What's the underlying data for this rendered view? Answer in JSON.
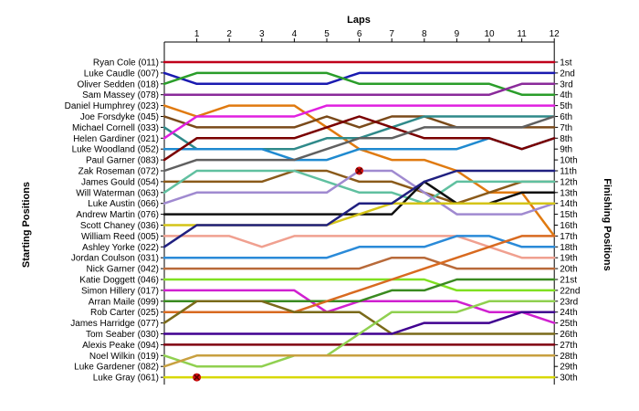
{
  "chart_data": {
    "type": "line",
    "title": "",
    "x_axis_title": "Laps",
    "left_axis_title": "Starting Positions",
    "right_axis_title": "Finishing Positions",
    "laps": [
      1,
      2,
      3,
      4,
      5,
      6,
      7,
      8,
      9,
      10,
      11,
      12
    ],
    "y_inverted": true,
    "grid": false,
    "starting_labels": [
      "Ryan Cole (011)",
      "Luke Caudle (007)",
      "Oliver Sedden (018)",
      "Sam Massey (078)",
      "Daniel Humphrey (023)",
      "Joe Forsdyke (045)",
      "Michael Cornell (033)",
      "Helen Gardiner (021)",
      "Luke Woodland (052)",
      "Paul Garner (083)",
      "Zak Roseman (072)",
      "James Gould (054)",
      "Will Waterman (063)",
      "Luke Austin (066)",
      "Andrew Martin (076)",
      "Scott Chaney (036)",
      "William Reed (005)",
      "Ashley Yorke (022)",
      "Jordan Coulson (031)",
      "Nick Garner (042)",
      "Katie Doggett (046)",
      "Simon Hillery (017)",
      "Arran Maile (099)",
      "Rob Carter (025)",
      "James Harridge (077)",
      "Tom Seaber (030)",
      "Alexis Peake (094)",
      "Noel Wilkin (019)",
      "Luke Gardener (082)",
      "Luke Gray (061)"
    ],
    "finishing_labels": [
      "1st",
      "2nd",
      "3rd",
      "4th",
      "5th",
      "6th",
      "7th",
      "8th",
      "9th",
      "10th",
      "11th",
      "12th",
      "13th",
      "14th",
      "15th",
      "16th",
      "17th",
      "18th",
      "19th",
      "20th",
      "21st",
      "22nd",
      "23rd",
      "24th",
      "25th",
      "26th",
      "27th",
      "28th",
      "29th",
      "30th"
    ],
    "series": [
      {
        "color": "#c0001a",
        "positions": [
          1,
          1,
          1,
          1,
          1,
          1,
          1,
          1,
          1,
          1,
          1,
          1,
          1
        ]
      },
      {
        "color": "#1a1ab0",
        "positions": [
          2,
          3,
          3,
          3,
          3,
          3,
          2,
          2,
          2,
          2,
          2,
          2,
          2
        ]
      },
      {
        "color": "#2a9d2a",
        "positions": [
          3,
          2,
          2,
          2,
          2,
          2,
          3,
          3,
          3,
          3,
          3,
          4,
          4
        ]
      },
      {
        "color": "#8a2a9a",
        "positions": [
          4,
          4,
          4,
          4,
          4,
          4,
          4,
          4,
          4,
          4,
          4,
          3,
          3
        ]
      },
      {
        "color": "#e07a10",
        "positions": [
          5,
          6,
          5,
          5,
          5,
          7,
          9,
          10,
          10,
          11,
          13,
          13,
          17
        ]
      },
      {
        "color": "#7a4a1a",
        "positions": [
          6,
          7,
          7,
          7,
          7,
          6,
          7,
          6,
          6,
          7,
          7,
          7,
          7
        ]
      },
      {
        "color": "#2f8a8a",
        "positions": [
          7,
          9,
          9,
          9,
          9,
          8,
          8,
          7,
          6,
          6,
          6,
          6,
          6
        ]
      },
      {
        "color": "#e020e0",
        "positions": [
          8,
          6,
          6,
          6,
          6,
          5,
          5,
          5,
          5,
          5,
          5,
          5,
          5
        ]
      },
      {
        "color": "#1f8ad0",
        "positions": [
          9,
          9,
          9,
          9,
          10,
          10,
          9,
          9,
          9,
          9,
          8,
          9,
          8
        ]
      },
      {
        "color": "#7a0000",
        "positions": [
          10,
          8,
          8,
          8,
          8,
          7,
          6,
          7,
          8,
          8,
          8,
          9,
          8
        ]
      },
      {
        "color": "#606060",
        "positions": [
          11,
          10,
          10,
          10,
          10,
          9,
          8,
          8,
          7,
          7,
          7,
          7,
          6
        ]
      },
      {
        "color": "#8a5a1a",
        "positions": [
          12,
          12,
          12,
          12,
          11,
          11,
          12,
          12,
          13,
          14,
          13,
          12,
          12
        ]
      },
      {
        "color": "#60c0a0",
        "positions": [
          13,
          11,
          11,
          11,
          11,
          12,
          13,
          13,
          14,
          12,
          12,
          12,
          12
        ]
      },
      {
        "color": "#a08ad0",
        "positions": [
          14,
          13,
          13,
          13,
          13,
          13,
          11,
          11,
          13,
          15,
          15,
          15,
          14
        ]
      },
      {
        "color": "#101010",
        "positions": [
          15,
          15,
          15,
          15,
          15,
          15,
          15,
          15,
          12,
          14,
          14,
          13,
          13
        ]
      },
      {
        "color": "#d4c418",
        "positions": [
          16,
          16,
          16,
          16,
          16,
          16,
          15,
          14,
          14,
          14,
          14,
          14,
          14
        ]
      },
      {
        "color": "#f0a090",
        "positions": [
          17,
          17,
          17,
          18,
          17,
          17,
          17,
          17,
          17,
          17,
          18,
          19,
          19
        ]
      },
      {
        "color": "#202080",
        "positions": [
          18,
          16,
          16,
          16,
          16,
          16,
          14,
          14,
          12,
          11,
          11,
          11,
          11
        ]
      },
      {
        "color": "#2a8ad8",
        "positions": [
          19,
          19,
          19,
          19,
          19,
          19,
          18,
          18,
          18,
          17,
          17,
          18,
          18
        ]
      },
      {
        "color": "#b86a3a",
        "positions": [
          20,
          20,
          20,
          20,
          20,
          20,
          20,
          19,
          19,
          20,
          20,
          20,
          20
        ]
      },
      {
        "color": "#80e020",
        "positions": [
          21,
          21,
          21,
          21,
          21,
          21,
          21,
          21,
          21,
          22,
          22,
          22,
          22
        ]
      },
      {
        "color": "#d020d0",
        "positions": [
          22,
          22,
          22,
          22,
          22,
          24,
          23,
          23,
          23,
          23,
          24,
          24,
          25
        ]
      },
      {
        "color": "#3a8a20",
        "positions": [
          23,
          23,
          23,
          23,
          23,
          23,
          23,
          22,
          22,
          21,
          21,
          21,
          21
        ]
      },
      {
        "color": "#d86a20",
        "positions": [
          24,
          24,
          24,
          24,
          24,
          23,
          22,
          21,
          20,
          19,
          18,
          17,
          17
        ]
      },
      {
        "color": "#7a6a1a",
        "positions": [
          25,
          23,
          23,
          23,
          24,
          24,
          24,
          26,
          26,
          26,
          26,
          26,
          26
        ]
      },
      {
        "color": "#400090",
        "positions": [
          26,
          26,
          26,
          26,
          26,
          26,
          26,
          26,
          25,
          25,
          25,
          24,
          24
        ]
      },
      {
        "color": "#800010",
        "positions": [
          27,
          27,
          27,
          27,
          27,
          27,
          27,
          27,
          27,
          27,
          27,
          27,
          27
        ]
      },
      {
        "color": "#90d050",
        "positions": [
          28,
          29,
          29,
          29,
          28,
          28,
          26,
          24,
          24,
          24,
          23,
          23,
          23
        ]
      },
      {
        "color": "#c8a040",
        "positions": [
          29,
          28,
          28,
          28,
          28,
          28,
          28,
          28,
          28,
          28,
          28,
          28,
          28
        ]
      },
      {
        "color": "#d8d800",
        "positions": [
          30,
          30,
          30,
          30,
          30,
          30,
          30,
          30,
          30,
          30,
          30,
          30,
          30
        ]
      }
    ],
    "retirements": [
      {
        "driver": "Zak Roseman (072)",
        "lap": 6,
        "position": 11
      },
      {
        "driver": "Luke Gray (061)",
        "lap": 1,
        "position": 30
      }
    ]
  }
}
